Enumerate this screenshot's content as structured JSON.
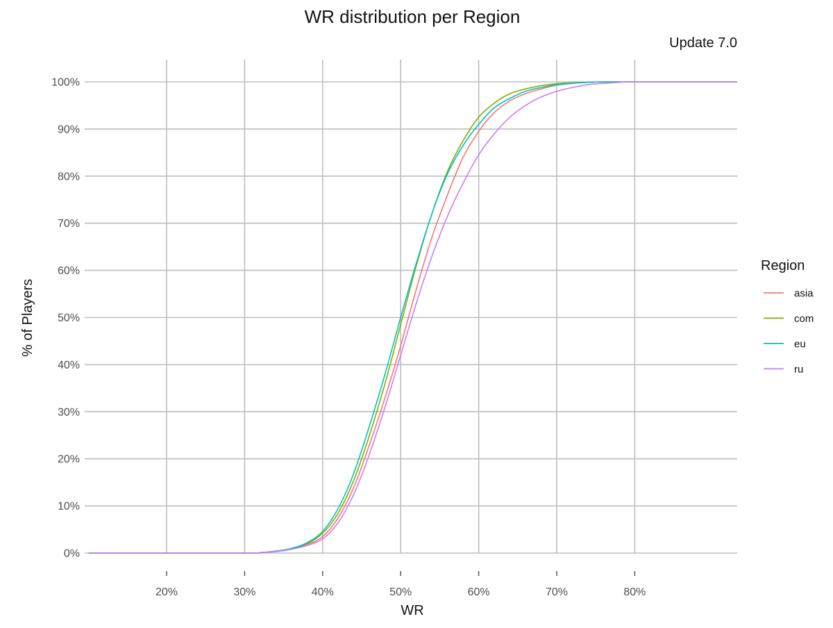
{
  "chart_data": {
    "type": "line",
    "title": "WR distribution per Region",
    "subtitle": "Update 7.0",
    "xlabel": "WR",
    "ylabel": "% of Players",
    "xlim": [
      10,
      94
    ],
    "ylim": [
      0,
      100
    ],
    "x_ticks": [
      20,
      30,
      40,
      50,
      60,
      70,
      80
    ],
    "x_tick_labels": [
      "20%",
      "30%",
      "40%",
      "50%",
      "60%",
      "70%",
      "80%"
    ],
    "y_ticks": [
      0,
      10,
      20,
      30,
      40,
      50,
      60,
      70,
      80,
      90,
      100
    ],
    "y_tick_labels": [
      "0%",
      "10%",
      "20%",
      "30%",
      "40%",
      "50%",
      "60%",
      "70%",
      "80%",
      "90%",
      "100%"
    ],
    "grid": true,
    "legend": {
      "title": "Region",
      "position": "right"
    },
    "x": [
      10,
      30,
      32,
      34,
      36,
      38,
      40,
      42,
      44,
      46,
      48,
      50,
      52,
      54,
      56,
      58,
      60,
      62,
      64,
      66,
      68,
      70,
      72,
      74,
      76,
      78,
      80,
      94
    ],
    "series": [
      {
        "name": "asia",
        "color": "#F8766D",
        "values": [
          0,
          0,
          0.1,
          0.4,
          0.9,
          1.8,
          3.5,
          7.5,
          14,
          23,
          33,
          44,
          56,
          67,
          76,
          84,
          89.5,
          93.5,
          96,
          97.5,
          98.5,
          99.3,
          99.7,
          99.9,
          100,
          100,
          100,
          100
        ]
      },
      {
        "name": "com",
        "color": "#7CAE00",
        "values": [
          0,
          0,
          0.1,
          0.4,
          0.9,
          2.0,
          4.2,
          8.5,
          15.5,
          25,
          36,
          48.5,
          61,
          72,
          81,
          87.5,
          92.5,
          95.5,
          97.5,
          98.5,
          99.2,
          99.6,
          99.8,
          99.9,
          100,
          100,
          100,
          100
        ]
      },
      {
        "name": "eu",
        "color": "#00BFC4",
        "values": [
          0,
          0,
          0.1,
          0.4,
          1.0,
          2.2,
          4.6,
          9.5,
          17,
          27,
          38,
          50,
          61.5,
          72,
          80.5,
          86.5,
          91,
          94.5,
          96.5,
          98,
          98.8,
          99.4,
          99.7,
          99.9,
          100,
          100,
          100,
          100
        ]
      },
      {
        "name": "ru",
        "color": "#C77CFF",
        "values": [
          0,
          0,
          0.1,
          0.3,
          0.8,
          1.6,
          3.0,
          6.5,
          12.5,
          21,
          31,
          42,
          53,
          63,
          71.5,
          78.5,
          84.5,
          89,
          92.5,
          95,
          96.8,
          98,
          98.8,
          99.4,
          99.7,
          99.9,
          100,
          100
        ]
      }
    ]
  }
}
